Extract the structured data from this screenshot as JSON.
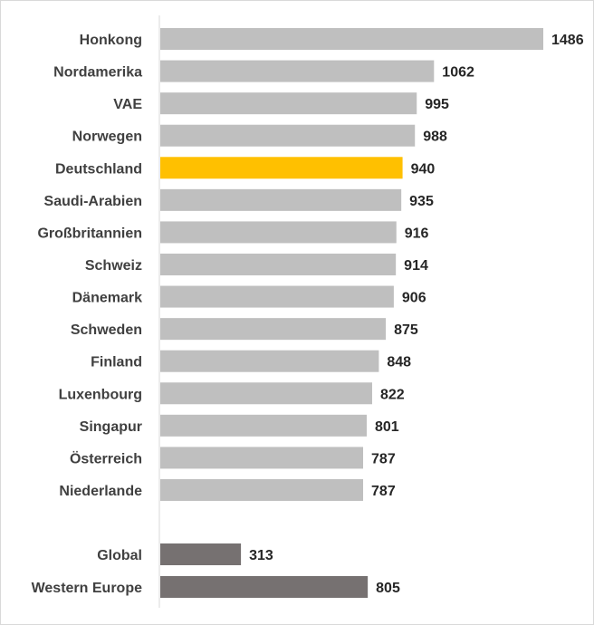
{
  "chart_data": {
    "type": "bar",
    "orientation": "horizontal",
    "categories": [
      "Honkong",
      "Nordamerika",
      "VAE",
      "Norwegen",
      "Deutschland",
      "Saudi-Arabien",
      "Großbritannien",
      "Schweiz",
      "Dänemark",
      "Schweden",
      "Finland",
      "Luxenbourg",
      "Singapur",
      "Österreich",
      "Niederlande",
      "Global",
      "Western Europe"
    ],
    "values": [
      1486,
      1062,
      995,
      988,
      940,
      935,
      916,
      914,
      906,
      875,
      848,
      822,
      801,
      787,
      787,
      313,
      805
    ],
    "bar_colors": [
      "#bfbfbf",
      "#bfbfbf",
      "#bfbfbf",
      "#bfbfbf",
      "#ffc000",
      "#bfbfbf",
      "#bfbfbf",
      "#bfbfbf",
      "#bfbfbf",
      "#bfbfbf",
      "#bfbfbf",
      "#bfbfbf",
      "#bfbfbf",
      "#bfbfbf",
      "#bfbfbf",
      "#767171",
      "#767171"
    ],
    "title": "",
    "xlabel": "",
    "ylabel": "",
    "xlim": [
      0,
      1486
    ],
    "data_labels": true,
    "grid": false,
    "legend": "none"
  }
}
